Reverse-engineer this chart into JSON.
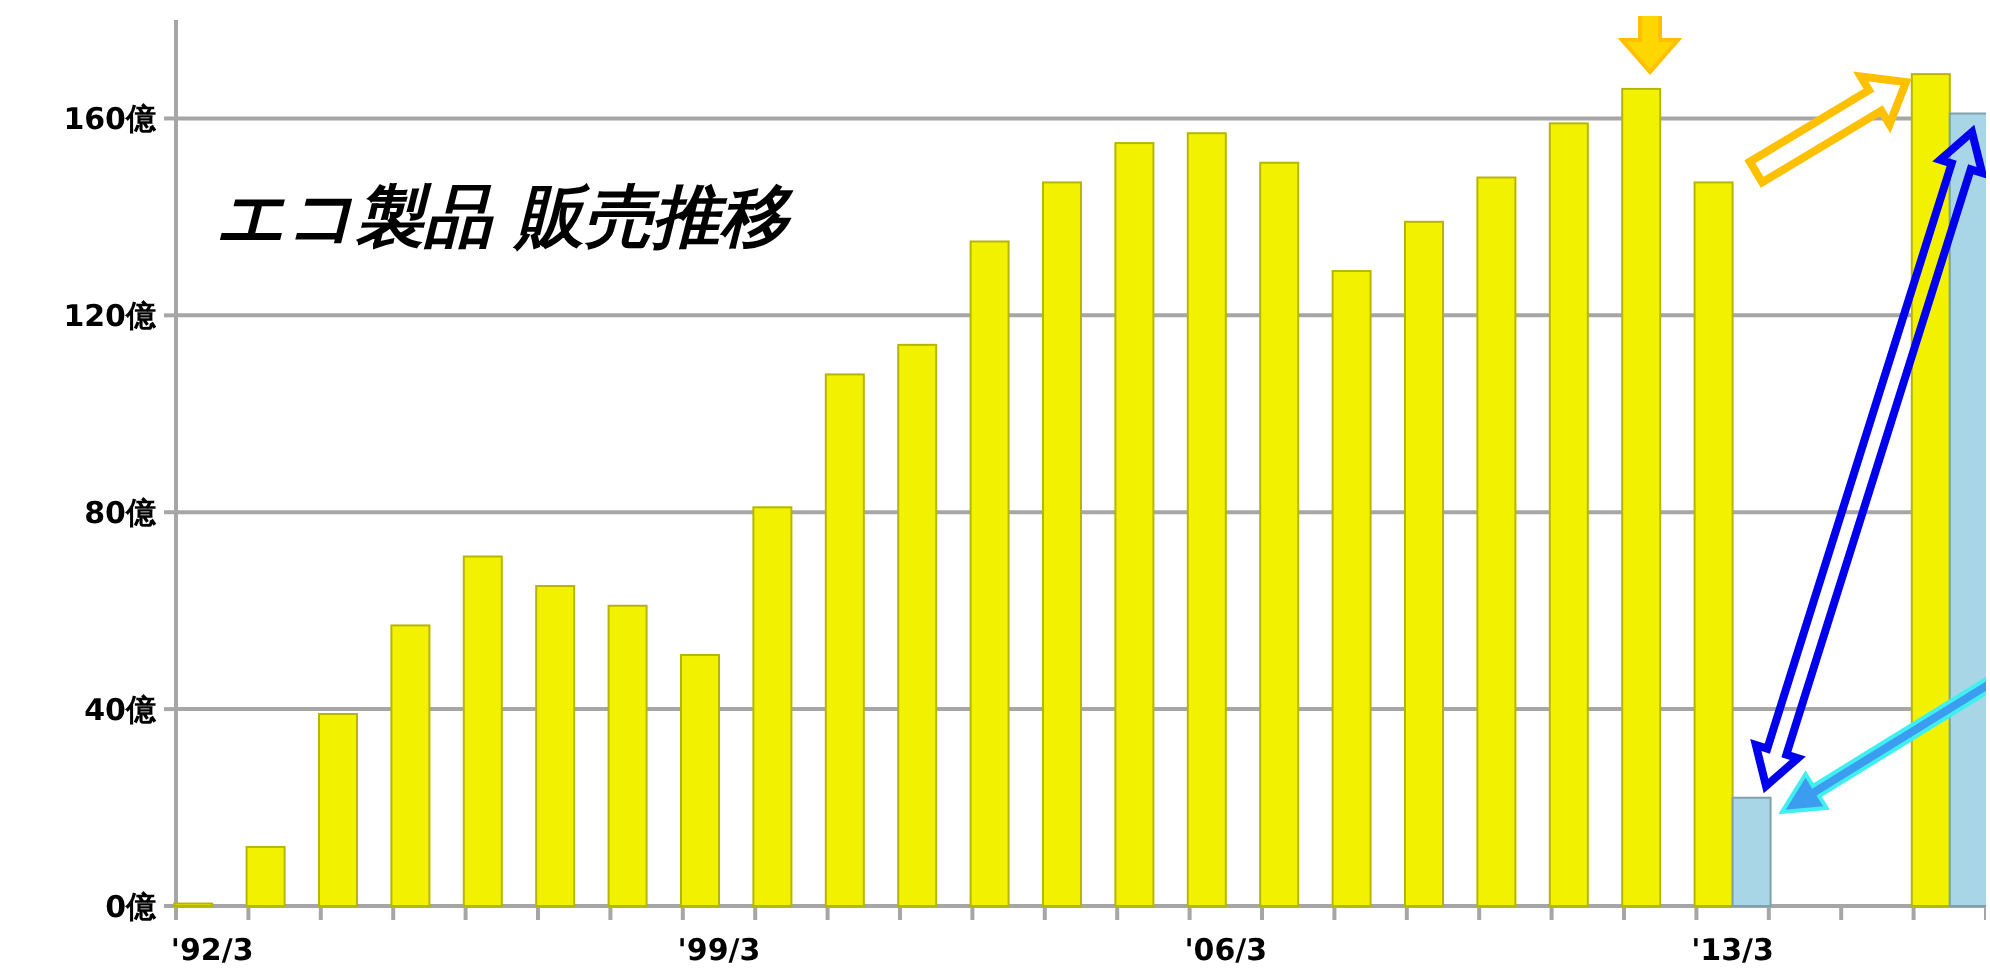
{
  "chart_data": {
    "type": "bar",
    "title": "エコ製品 販売推移",
    "categories": [
      "'92/3",
      null,
      null,
      null,
      null,
      null,
      null,
      "'99/3",
      null,
      null,
      null,
      null,
      null,
      null,
      "'06/3",
      null,
      null,
      null,
      null,
      null,
      null,
      "'13/3",
      null,
      null,
      null
    ],
    "series": [
      {
        "color": "#f2f200",
        "values": [
          0.5,
          12,
          39,
          57,
          71,
          65,
          61,
          51,
          81,
          108,
          114,
          135,
          147,
          155,
          157,
          151,
          129,
          139,
          148,
          159,
          166,
          147,
          null,
          null,
          169
        ]
      },
      {
        "color": "#a9d6e6",
        "values": [
          null,
          null,
          null,
          null,
          null,
          null,
          null,
          null,
          null,
          null,
          null,
          null,
          null,
          null,
          null,
          null,
          null,
          null,
          null,
          null,
          null,
          22,
          null,
          null,
          161
        ]
      }
    ],
    "ylim": [
      0,
      180
    ],
    "yticks": [
      {
        "value": 0,
        "label": "0億"
      },
      {
        "value": 40,
        "label": "40億"
      },
      {
        "value": 80,
        "label": "80億"
      },
      {
        "value": 120,
        "label": "120億"
      },
      {
        "value": 160,
        "label": "160億"
      }
    ],
    "grid": "y"
  }
}
